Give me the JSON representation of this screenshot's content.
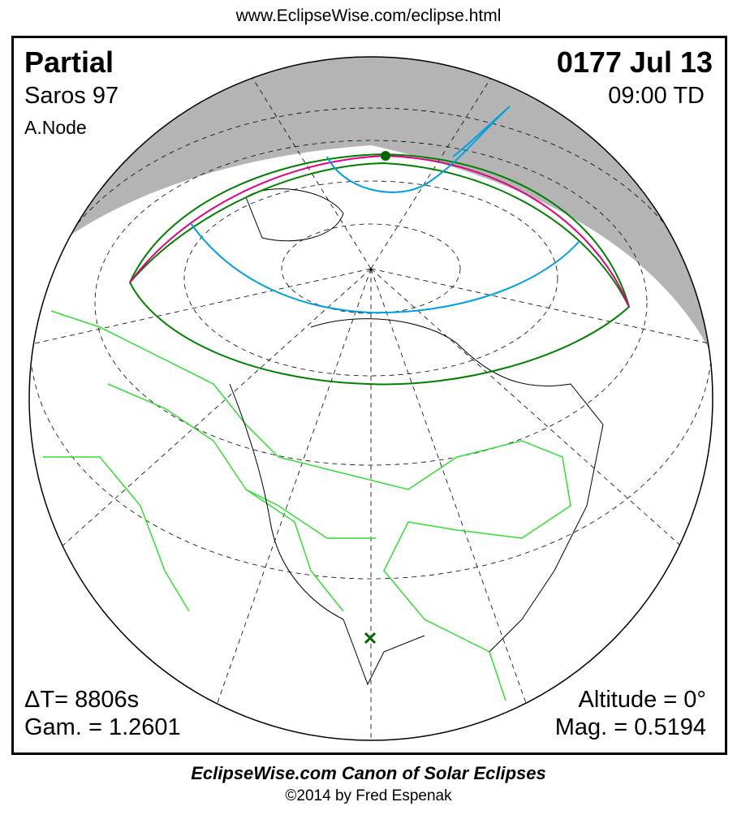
{
  "header_url": "www.EclipseWise.com/eclipse.html",
  "eclipse": {
    "type": "Partial",
    "date": "0177 Jul 13",
    "saros": "Saros  97",
    "time": "09:00 TD",
    "node": "A.Node",
    "delta_t": "ΔT=   8806s",
    "gamma": "Gam. = 1.2601",
    "altitude": "Altitude =  0°",
    "magnitude": "Mag. = 0.5194"
  },
  "footer": {
    "canon": "EclipseWise.com Canon of Solar Eclipses",
    "copyright": "©2014 by Fred Espenak"
  },
  "colors": {
    "night": "#b4b4b4",
    "penumbra_limit": "#008000",
    "max_eclipse_line": "#e0007f",
    "rise_set_curve": "#00a0e0",
    "borders": "#33dd33",
    "greatest_eclipse_marker": "#006600"
  }
}
